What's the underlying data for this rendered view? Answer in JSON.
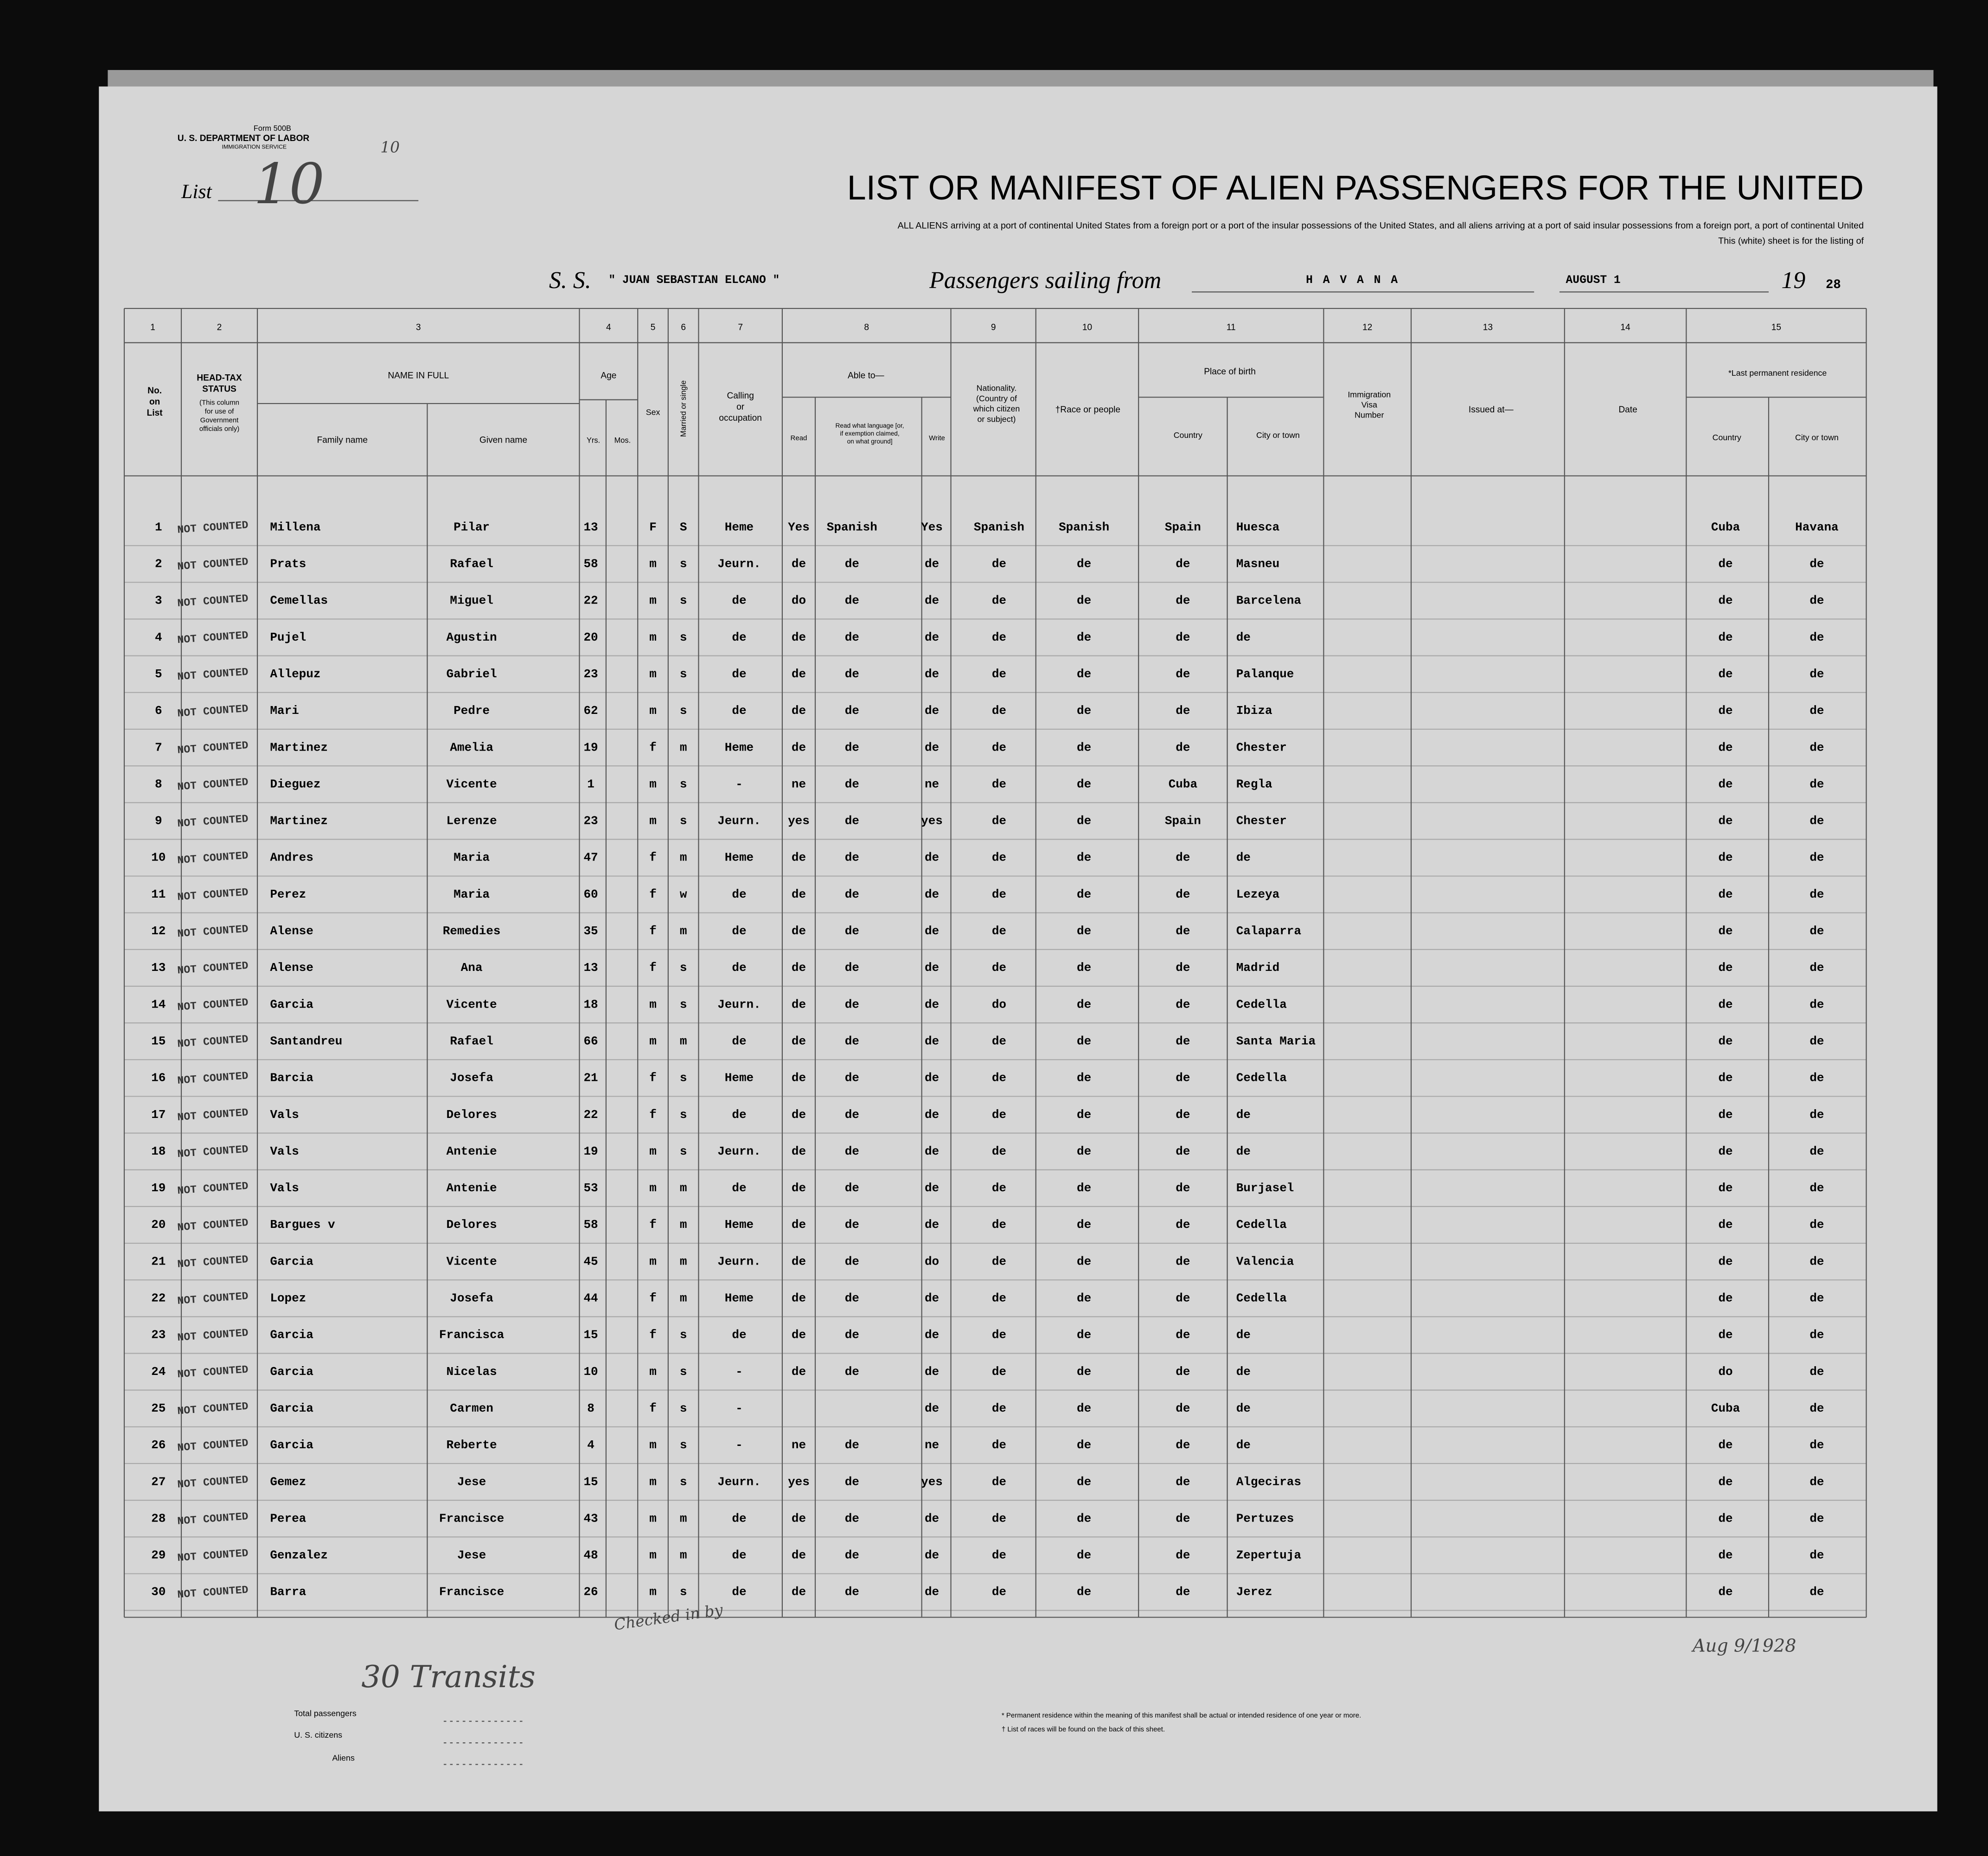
{
  "header": {
    "form": "Form 500B",
    "department": "U. S. DEPARTMENT OF LABOR",
    "service": "IMMIGRATION SERVICE",
    "list_label": "List",
    "list_number": "10",
    "list_mark": "10",
    "title": "LIST OR MANIFEST OF ALIEN PASSENGERS FOR THE UNITED",
    "subtitle": [
      "ALL ALIENS arriving at a port of continental United States from a foreign port or a port of the insular possessions of the United States, and all aliens arriving at a port of said insular possessions from a foreign port, a port of continental United",
      "This (white) sheet is for the listing of"
    ],
    "ship_label": "S. S.",
    "ship": "\" JUAN SEBASTIAN ELCANO \"",
    "sailing_label": "Passengers sailing from",
    "port": "HAVANA",
    "date": "AUGUST 1",
    "year_label": "19",
    "year": "28"
  },
  "table": {
    "column_numbers": [
      1,
      2,
      3,
      4,
      5,
      6,
      7,
      8,
      9,
      10,
      11,
      12,
      13,
      14,
      15
    ],
    "headings": {
      "no": [
        "No.",
        "on",
        "List"
      ],
      "head_tax": [
        "HEAD-TAX",
        "STATUS"
      ],
      "head_tax_note": [
        "(This column",
        "for use of",
        "Government",
        "officials only)"
      ],
      "name": [
        "NAME IN FULL"
      ],
      "family": [
        "Family name"
      ],
      "given": [
        "Given name"
      ],
      "age": [
        "Age"
      ],
      "yrs": [
        "Yrs."
      ],
      "mos": [
        "Mos."
      ],
      "sex": [
        "Sex"
      ],
      "married": [
        "Married or single"
      ],
      "occupation": [
        "Calling",
        "or",
        "occupation"
      ],
      "able": [
        "Able to—"
      ],
      "read": [
        "Read"
      ],
      "language": [
        "Read what language [or,",
        "if exemption claimed,",
        "on what ground]"
      ],
      "write": [
        "Write"
      ],
      "nationality": [
        "Nationality.",
        "(Country of",
        "which citizen",
        "or subject)"
      ],
      "race": [
        "†Race or people"
      ],
      "birth": [
        "Place of birth"
      ],
      "country": [
        "Country"
      ],
      "city": [
        "City or town"
      ],
      "visa": [
        "Immigration",
        "Visa",
        "Number"
      ],
      "issued": [
        "Issued at—"
      ],
      "date": [
        "Date"
      ],
      "residence": [
        "*Last permanent residence"
      ],
      "res_country": [
        "Country"
      ],
      "res_city": [
        "City or town"
      ]
    },
    "rows": [
      [
        1,
        "NOT COUNTED",
        "Millena",
        "Pilar",
        13,
        "F",
        "S",
        "Heme",
        "Yes",
        "Spanish",
        "Yes",
        "Spanish",
        "Spanish",
        "Spain",
        "Huesca",
        "Cuba",
        "Havana"
      ],
      [
        2,
        "NOT COUNTED",
        "Prats",
        "Rafael",
        58,
        "m",
        "s",
        "Jeurn.",
        "de",
        "de",
        "de",
        "de",
        "de",
        "de",
        "Masneu",
        "de",
        "de"
      ],
      [
        3,
        "NOT COUNTED",
        "Cemellas",
        "Miguel",
        22,
        "m",
        "s",
        "de",
        "do",
        "de",
        "de",
        "de",
        "de",
        "de",
        "Barcelena",
        "de",
        "de"
      ],
      [
        4,
        "NOT COUNTED",
        "Pujel",
        "Agustin",
        20,
        "m",
        "s",
        "de",
        "de",
        "de",
        "de",
        "de",
        "de",
        "de",
        "de",
        "de",
        "de"
      ],
      [
        5,
        "NOT COUNTED",
        "Allepuz",
        "Gabriel",
        23,
        "m",
        "s",
        "de",
        "de",
        "de",
        "de",
        "de",
        "de",
        "de",
        "Palanque",
        "de",
        "de"
      ],
      [
        6,
        "NOT COUNTED",
        "Mari",
        "Pedre",
        62,
        "m",
        "s",
        "de",
        "de",
        "de",
        "de",
        "de",
        "de",
        "de",
        "Ibiza",
        "de",
        "de"
      ],
      [
        7,
        "NOT COUNTED",
        "Martinez",
        "Amelia",
        19,
        "f",
        "m",
        "Heme",
        "de",
        "de",
        "de",
        "de",
        "de",
        "de",
        "Chester",
        "de",
        "de"
      ],
      [
        8,
        "NOT COUNTED",
        "Dieguez",
        "Vicente",
        1,
        "m",
        "s",
        "-",
        "ne",
        "de",
        "ne",
        "de",
        "de",
        "Cuba",
        "Regla",
        "de",
        "de"
      ],
      [
        9,
        "NOT COUNTED",
        "Martinez",
        "Lerenze",
        23,
        "m",
        "s",
        "Jeurn.",
        "yes",
        "de",
        "yes",
        "de",
        "de",
        "Spain",
        "Chester",
        "de",
        "de"
      ],
      [
        10,
        "NOT COUNTED",
        "Andres",
        "Maria",
        47,
        "f",
        "m",
        "Heme",
        "de",
        "de",
        "de",
        "de",
        "de",
        "de",
        "de",
        "de",
        "de"
      ],
      [
        11,
        "NOT COUNTED",
        "Perez",
        "Maria",
        60,
        "f",
        "w",
        "de",
        "de",
        "de",
        "de",
        "de",
        "de",
        "de",
        "Lezeya",
        "de",
        "de"
      ],
      [
        12,
        "NOT COUNTED",
        "Alense",
        "Remedies",
        35,
        "f",
        "m",
        "de",
        "de",
        "de",
        "de",
        "de",
        "de",
        "de",
        "Calaparra",
        "de",
        "de"
      ],
      [
        13,
        "NOT COUNTED",
        "Alense",
        "Ana",
        13,
        "f",
        "s",
        "de",
        "de",
        "de",
        "de",
        "de",
        "de",
        "de",
        "Madrid",
        "de",
        "de"
      ],
      [
        14,
        "NOT COUNTED",
        "Garcia",
        "Vicente",
        18,
        "m",
        "s",
        "Jeurn.",
        "de",
        "de",
        "de",
        "do",
        "de",
        "de",
        "Cedella",
        "de",
        "de"
      ],
      [
        15,
        "NOT COUNTED",
        "Santandreu",
        "Rafael",
        66,
        "m",
        "m",
        "de",
        "de",
        "de",
        "de",
        "de",
        "de",
        "de",
        "Santa Maria",
        "de",
        "de"
      ],
      [
        16,
        "NOT COUNTED",
        "Barcia",
        "Josefa",
        21,
        "f",
        "s",
        "Heme",
        "de",
        "de",
        "de",
        "de",
        "de",
        "de",
        "Cedella",
        "de",
        "de"
      ],
      [
        17,
        "NOT COUNTED",
        "Vals",
        "Delores",
        22,
        "f",
        "s",
        "de",
        "de",
        "de",
        "de",
        "de",
        "de",
        "de",
        "de",
        "de",
        "de"
      ],
      [
        18,
        "NOT COUNTED",
        "Vals",
        "Antenie",
        19,
        "m",
        "s",
        "Jeurn.",
        "de",
        "de",
        "de",
        "de",
        "de",
        "de",
        "de",
        "de",
        "de"
      ],
      [
        19,
        "NOT COUNTED",
        "Vals",
        "Antenie",
        53,
        "m",
        "m",
        "de",
        "de",
        "de",
        "de",
        "de",
        "de",
        "de",
        "Burjasel",
        "de",
        "de"
      ],
      [
        20,
        "NOT COUNTED",
        "Bargues v",
        "Delores",
        58,
        "f",
        "m",
        "Heme",
        "de",
        "de",
        "de",
        "de",
        "de",
        "de",
        "Cedella",
        "de",
        "de"
      ],
      [
        21,
        "NOT COUNTED",
        "Garcia",
        "Vicente",
        45,
        "m",
        "m",
        "Jeurn.",
        "de",
        "de",
        "do",
        "de",
        "de",
        "de",
        "Valencia",
        "de",
        "de"
      ],
      [
        22,
        "NOT COUNTED",
        "Lopez",
        "Josefa",
        44,
        "f",
        "m",
        "Heme",
        "de",
        "de",
        "de",
        "de",
        "de",
        "de",
        "Cedella",
        "de",
        "de"
      ],
      [
        23,
        "NOT COUNTED",
        "Garcia",
        "Francisca",
        15,
        "f",
        "s",
        "de",
        "de",
        "de",
        "de",
        "de",
        "de",
        "de",
        "de",
        "de",
        "de"
      ],
      [
        24,
        "NOT COUNTED",
        "Garcia",
        "Nicelas",
        10,
        "m",
        "s",
        "-",
        "de",
        "de",
        "de",
        "de",
        "de",
        "de",
        "de",
        "do",
        "de"
      ],
      [
        25,
        "NOT COUNTED",
        "Garcia",
        "Carmen",
        8,
        "f",
        "s",
        "-",
        null,
        null,
        "de",
        "de",
        "de",
        "de",
        "de",
        "Cuba",
        "de"
      ],
      [
        26,
        "NOT COUNTED",
        "Garcia",
        "Reberte",
        4,
        "m",
        "s",
        "-",
        "ne",
        "de",
        "ne",
        "de",
        "de",
        "de",
        "de",
        "de",
        "de"
      ],
      [
        27,
        "NOT COUNTED",
        "Gemez",
        "Jese",
        15,
        "m",
        "s",
        "Jeurn.",
        "yes",
        "de",
        "yes",
        "de",
        "de",
        "de",
        "Algeciras",
        "de",
        "de"
      ],
      [
        28,
        "NOT COUNTED",
        "Perea",
        "Francisce",
        43,
        "m",
        "m",
        "de",
        "de",
        "de",
        "de",
        "de",
        "de",
        "de",
        "Pertuzes",
        "de",
        "de"
      ],
      [
        29,
        "NOT COUNTED",
        "Genzalez",
        "Jese",
        48,
        "m",
        "m",
        "de",
        "de",
        "de",
        "de",
        "de",
        "de",
        "de",
        "Zepertuja",
        "de",
        "de"
      ],
      [
        30,
        "NOT COUNTED",
        "Barra",
        "Francisce",
        26,
        "m",
        "s",
        "de",
        "de",
        "de",
        "de",
        "de",
        "de",
        "de",
        "Jerez",
        "de",
        "de"
      ]
    ]
  },
  "annotations": {
    "transits": "30 Transits",
    "checked": "Checked in by",
    "date": "Aug 9/1928"
  },
  "footer": {
    "total": "Total passengers",
    "citizens": "U. S. citizens",
    "aliens": "Aliens",
    "notes": [
      "* Permanent residence within the meaning of this manifest shall be actual or intended residence of one year or more.",
      "† List of races will be found on the back of this sheet."
    ]
  }
}
